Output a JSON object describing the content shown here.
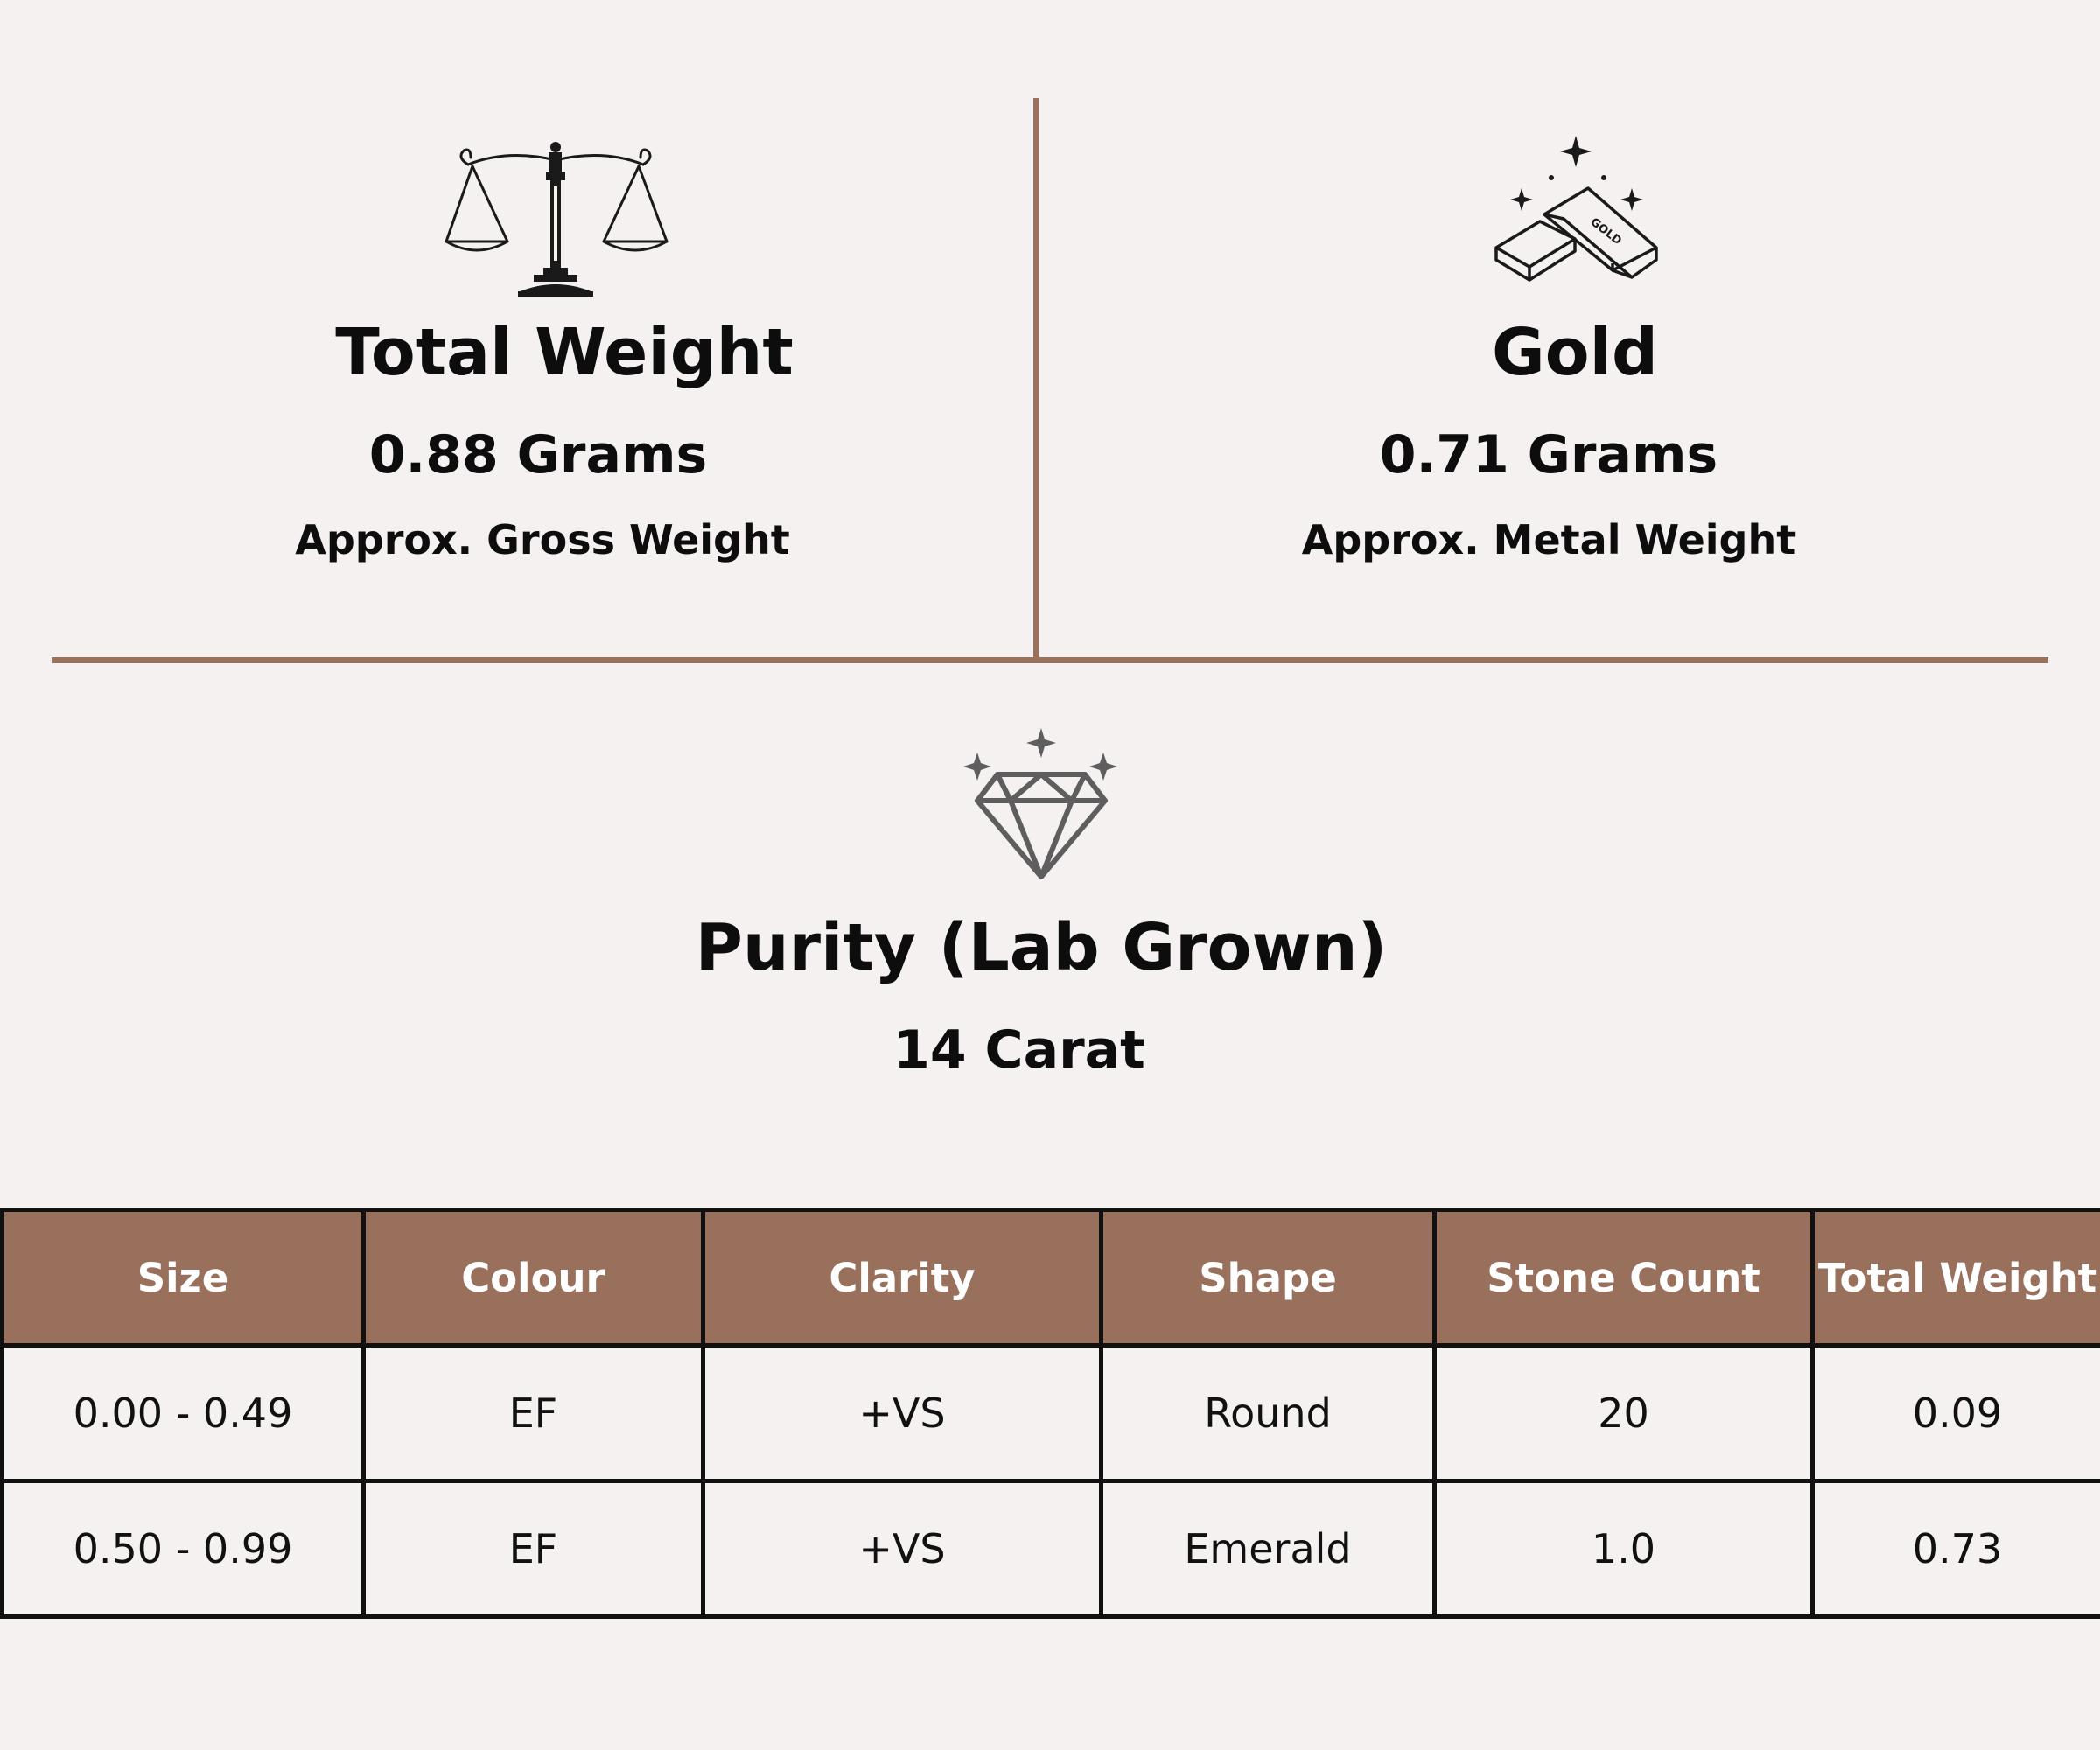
{
  "weight_block": {
    "icon": "balance-scale-icon",
    "title": "Total Weight",
    "value": "0.88 Grams",
    "subtitle": "Approx. Gross Weight"
  },
  "gold_block": {
    "icon": "gold-bars-icon",
    "icon_label": "GOLD",
    "title": "Gold",
    "value": "0.71 Grams",
    "subtitle": "Approx. Metal Weight"
  },
  "purity_block": {
    "icon": "diamond-icon",
    "title": "Purity (Lab Grown)",
    "value": "14 Carat"
  },
  "stone_table": {
    "headers": [
      "Size",
      "Colour",
      "Clarity",
      "Shape",
      "Stone Count",
      "Total Weight"
    ],
    "rows": [
      [
        "0.00 - 0.49",
        "EF",
        "+VS",
        "Round",
        "20",
        "0.09"
      ],
      [
        "0.50 - 0.99",
        "EF",
        "+VS",
        "Emerald",
        "1.0",
        "0.73"
      ]
    ]
  },
  "colors": {
    "background": "#f4f1f0",
    "accent_brown": "#9a715e",
    "header_fill": "#98705c",
    "text": "#0d0d0d"
  }
}
